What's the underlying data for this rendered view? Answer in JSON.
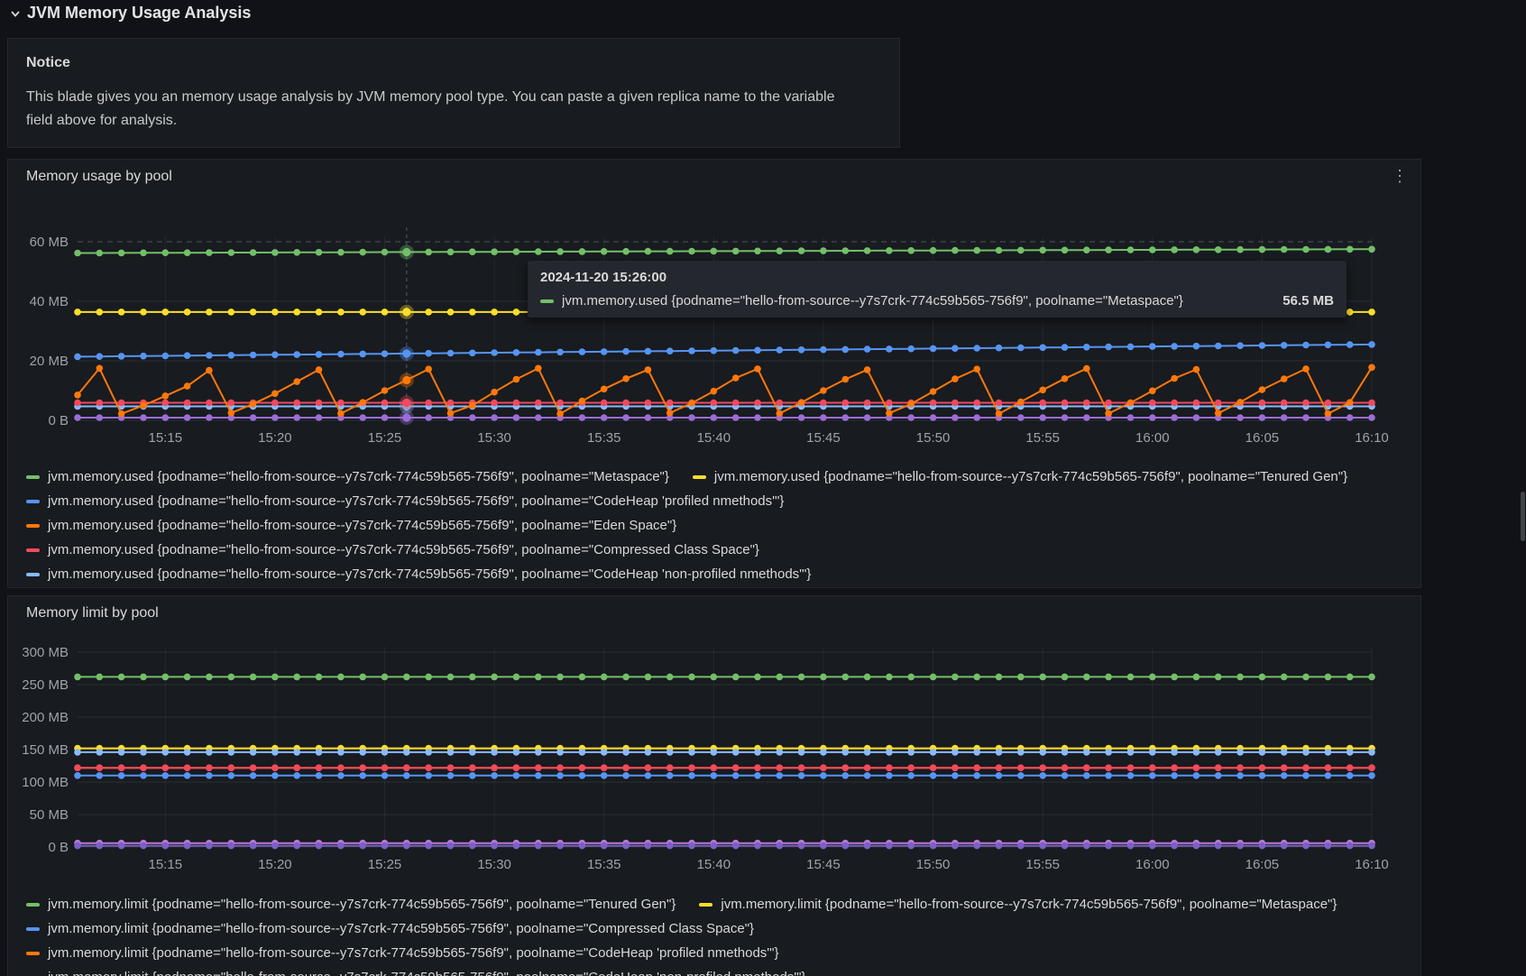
{
  "header": {
    "title": "JVM Memory Usage Analysis"
  },
  "notice": {
    "title": "Notice",
    "body": "This blade gives you an memory usage analysis by JVM memory pool type. You can paste a given replica name to the variable field above for analysis."
  },
  "panel_menu_icon": "⋮",
  "chart_data": [
    {
      "type": "line",
      "title": "Memory usage by pool",
      "points": 60,
      "ylim": [
        0,
        62
      ],
      "grid": true,
      "legend_position": "bottom",
      "y_ticks": [
        {
          "label": "60 MB",
          "value": 60,
          "dashed": true
        },
        {
          "label": "40 MB",
          "value": 40
        },
        {
          "label": "20 MB",
          "value": 20
        },
        {
          "label": "0 B",
          "value": 0
        }
      ],
      "x_tick_labels": [
        "15:15",
        "15:20",
        "15:25",
        "15:30",
        "15:35",
        "15:40",
        "15:45",
        "15:50",
        "15:55",
        "16:00",
        "16:05",
        "16:10"
      ],
      "x_tick_indices": [
        4,
        9,
        14,
        19,
        24,
        29,
        34,
        39,
        44,
        49,
        54,
        59
      ],
      "crosshair_index": 15,
      "series": [
        {
          "name": "jvm.memory.used {podname=\"hello-from-source--y7s7crk-774c59b565-756f9\", poolname=\"Metaspace\"}",
          "color": "#73BF69",
          "from": 56.2,
          "to": 57.5
        },
        {
          "name": "jvm.memory.used {podname=\"hello-from-source--y7s7crk-774c59b565-756f9\", poolname=\"Tenured Gen\"}",
          "color": "#FADE2A",
          "value": 36.4
        },
        {
          "name": "jvm.memory.used {podname=\"hello-from-source--y7s7crk-774c59b565-756f9\", poolname=\"CodeHeap 'profiled nmethods'\"}",
          "color": "#5794F2",
          "from": 21.4,
          "to": 25.5
        },
        {
          "name": "",
          "color": "#9B6DD6",
          "value": 0.9
        },
        {
          "name": "jvm.memory.used {podname=\"hello-from-source--y7s7crk-774c59b565-756f9\", poolname=\"CodeHeap 'non-profiled nmethods'\"}",
          "color": "#8AB8FF",
          "value": 4.7
        },
        {
          "name": "jvm.memory.used {podname=\"hello-from-source--y7s7crk-774c59b565-756f9\", poolname=\"Compressed Class Space\"}",
          "color": "#F2495C",
          "value": 5.9
        },
        {
          "name": "jvm.memory.used {podname=\"hello-from-source--y7s7crk-774c59b565-756f9\", poolname=\"Eden Space\"}",
          "color": "#FF780A",
          "values": [
            8.5,
            17.5,
            2.2,
            5,
            8.2,
            11.5,
            16.8,
            2.5,
            5.5,
            9,
            13,
            17,
            2.3,
            6,
            10,
            13.5,
            17.2,
            2.4,
            5,
            9.5,
            13.8,
            17.5,
            2.2,
            6.5,
            10.5,
            14,
            17,
            2.5,
            5.8,
            9.8,
            14.2,
            17.3,
            2.3,
            6,
            10,
            13.8,
            17,
            2.4,
            5.5,
            9.7,
            13.9,
            17.2,
            2.2,
            6.2,
            10.2,
            14,
            17.4,
            2.3,
            5.9,
            9.9,
            14.1,
            17.1,
            2.4,
            6.1,
            10.3,
            13.9,
            17.3,
            2.2,
            6,
            17.8
          ]
        }
      ],
      "legend_rows": [
        [
          {
            "color": "#73BF69",
            "label": "jvm.memory.used {podname=\"hello-from-source--y7s7crk-774c59b565-756f9\", poolname=\"Metaspace\"}"
          },
          {
            "color": "#FADE2A",
            "label": "jvm.memory.used {podname=\"hello-from-source--y7s7crk-774c59b565-756f9\", poolname=\"Tenured Gen\"}"
          }
        ],
        [
          {
            "color": "#5794F2",
            "label": "jvm.memory.used {podname=\"hello-from-source--y7s7crk-774c59b565-756f9\", poolname=\"CodeHeap 'profiled nmethods'\"}"
          }
        ],
        [
          {
            "color": "#FF780A",
            "label": "jvm.memory.used {podname=\"hello-from-source--y7s7crk-774c59b565-756f9\", poolname=\"Eden Space\"}"
          }
        ],
        [
          {
            "color": "#F2495C",
            "label": "jvm.memory.used {podname=\"hello-from-source--y7s7crk-774c59b565-756f9\", poolname=\"Compressed Class Space\"}"
          }
        ],
        [
          {
            "color": "#8AB8FF",
            "label": "jvm.memory.used {podname=\"hello-from-source--y7s7crk-774c59b565-756f9\", poolname=\"CodeHeap 'non-profiled nmethods'\"}"
          }
        ]
      ],
      "tooltip": {
        "date": "2024-11-20 15:26:00",
        "series_label": "jvm.memory.used {podname=\"hello-from-source--y7s7crk-774c59b565-756f9\", poolname=\"Metaspace\"}",
        "value": "56.5 MB",
        "color": "#73BF69"
      }
    },
    {
      "type": "line",
      "title": "Memory limit by pool",
      "points": 60,
      "ylim": [
        0,
        310
      ],
      "grid": true,
      "legend_position": "bottom",
      "y_ticks": [
        {
          "label": "300 MB",
          "value": 300
        },
        {
          "label": "250 MB",
          "value": 250
        },
        {
          "label": "200 MB",
          "value": 200
        },
        {
          "label": "150 MB",
          "value": 150
        },
        {
          "label": "100 MB",
          "value": 100
        },
        {
          "label": "50 MB",
          "value": 50
        },
        {
          "label": "0 B",
          "value": 0
        }
      ],
      "x_tick_labels": [
        "15:15",
        "15:20",
        "15:25",
        "15:30",
        "15:35",
        "15:40",
        "15:45",
        "15:50",
        "15:55",
        "16:00",
        "16:05",
        "16:10"
      ],
      "x_tick_indices": [
        4,
        9,
        14,
        19,
        24,
        29,
        34,
        39,
        44,
        49,
        54,
        59
      ],
      "series": [
        {
          "name": "jvm.memory.limit {podname=\"hello-from-source--y7s7crk-774c59b565-756f9\", poolname=\"Tenured Gen\"}",
          "color": "#73BF69",
          "value": 262
        },
        {
          "name": "jvm.memory.limit {podname=\"hello-from-source--y7s7crk-774c59b565-756f9\", poolname=\"Metaspace\"}",
          "color": "#FADE2A",
          "value": 152
        },
        {
          "name": "",
          "color": "#8AB8FF",
          "value": 146
        },
        {
          "name": "jvm.memory.limit {podname=\"hello-from-source--y7s7crk-774c59b565-756f9\", poolname=\"CodeHeap 'profiled nmethods'\"}",
          "color": "#FF780A",
          "value": 122
        },
        {
          "name": "jvm.memory.limit {podname=\"hello-from-source--y7s7crk-774c59b565-756f9\", poolname=\"CodeHeap 'non-profiled nmethods'\"}",
          "color": "#F2495C",
          "value": 122
        },
        {
          "name": "jvm.memory.limit {podname=\"hello-from-source--y7s7crk-774c59b565-756f9\", poolname=\"Compressed Class Space\"}",
          "color": "#5794F2",
          "value": 110
        },
        {
          "name": "",
          "color": "#B877D9",
          "value": 6
        },
        {
          "name": "",
          "color": "#7B61C4",
          "value": 2
        }
      ],
      "legend_rows": [
        [
          {
            "color": "#73BF69",
            "label": "jvm.memory.limit {podname=\"hello-from-source--y7s7crk-774c59b565-756f9\", poolname=\"Tenured Gen\"}"
          },
          {
            "color": "#FADE2A",
            "label": "jvm.memory.limit {podname=\"hello-from-source--y7s7crk-774c59b565-756f9\", poolname=\"Metaspace\"}"
          }
        ],
        [
          {
            "color": "#5794F2",
            "label": "jvm.memory.limit {podname=\"hello-from-source--y7s7crk-774c59b565-756f9\", poolname=\"Compressed Class Space\"}"
          }
        ],
        [
          {
            "color": "#FF780A",
            "label": "jvm.memory.limit {podname=\"hello-from-source--y7s7crk-774c59b565-756f9\", poolname=\"CodeHeap 'profiled nmethods'\"}"
          }
        ],
        [
          {
            "color": "#F2495C",
            "label": "jvm.memory.limit {podname=\"hello-from-source--y7s7crk-774c59b565-756f9\", poolname=\"CodeHeap 'non-profiled nmethods'\"}"
          }
        ]
      ]
    }
  ]
}
